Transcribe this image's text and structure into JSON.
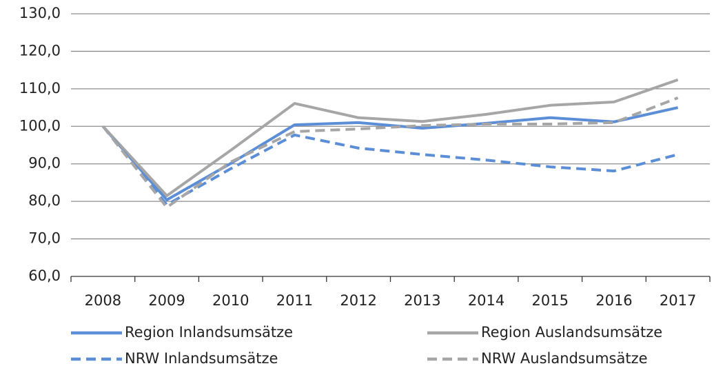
{
  "chart_data": {
    "type": "line",
    "categories": [
      "2008",
      "2009",
      "2010",
      "2011",
      "2012",
      "2013",
      "2014",
      "2015",
      "2016",
      "2017"
    ],
    "series": [
      {
        "name": "Region Inlandsumsätze",
        "color": "#5b8ed6",
        "dashed": false,
        "values": [
          100,
          80.4,
          90.1,
          100.4,
          101,
          99.5,
          100.8,
          102.3,
          101.2,
          105
        ]
      },
      {
        "name": "Region Auslandsumsätze",
        "color": "#a6a6a6",
        "dashed": false,
        "values": [
          100,
          81.5,
          93.6,
          106.1,
          102.3,
          101.3,
          103.2,
          105.6,
          106.5,
          112.4
        ]
      },
      {
        "name": "NRW Inlandsumsätze",
        "color": "#5b8ed6",
        "dashed": true,
        "values": [
          100,
          79.1,
          88.7,
          97.7,
          94.2,
          92.5,
          91.0,
          89.2,
          88.1,
          92.5
        ]
      },
      {
        "name": "NRW Auslandsumsätze",
        "color": "#a6a6a6",
        "dashed": true,
        "values": [
          100,
          78.4,
          90.5,
          98.6,
          99.3,
          100.2,
          100.6,
          100.6,
          101.0,
          107.6
        ]
      }
    ],
    "ylim": [
      60,
      130
    ],
    "yticks": [
      {
        "value": 60,
        "label": "60,0"
      },
      {
        "value": 70,
        "label": "70,0"
      },
      {
        "value": 80,
        "label": "80,0"
      },
      {
        "value": 90,
        "label": "90,0"
      },
      {
        "value": 100,
        "label": "100,0"
      },
      {
        "value": 110,
        "label": "110,0"
      },
      {
        "value": 120,
        "label": "120,0"
      },
      {
        "value": 130,
        "label": "130,0"
      }
    ],
    "grid": true
  }
}
